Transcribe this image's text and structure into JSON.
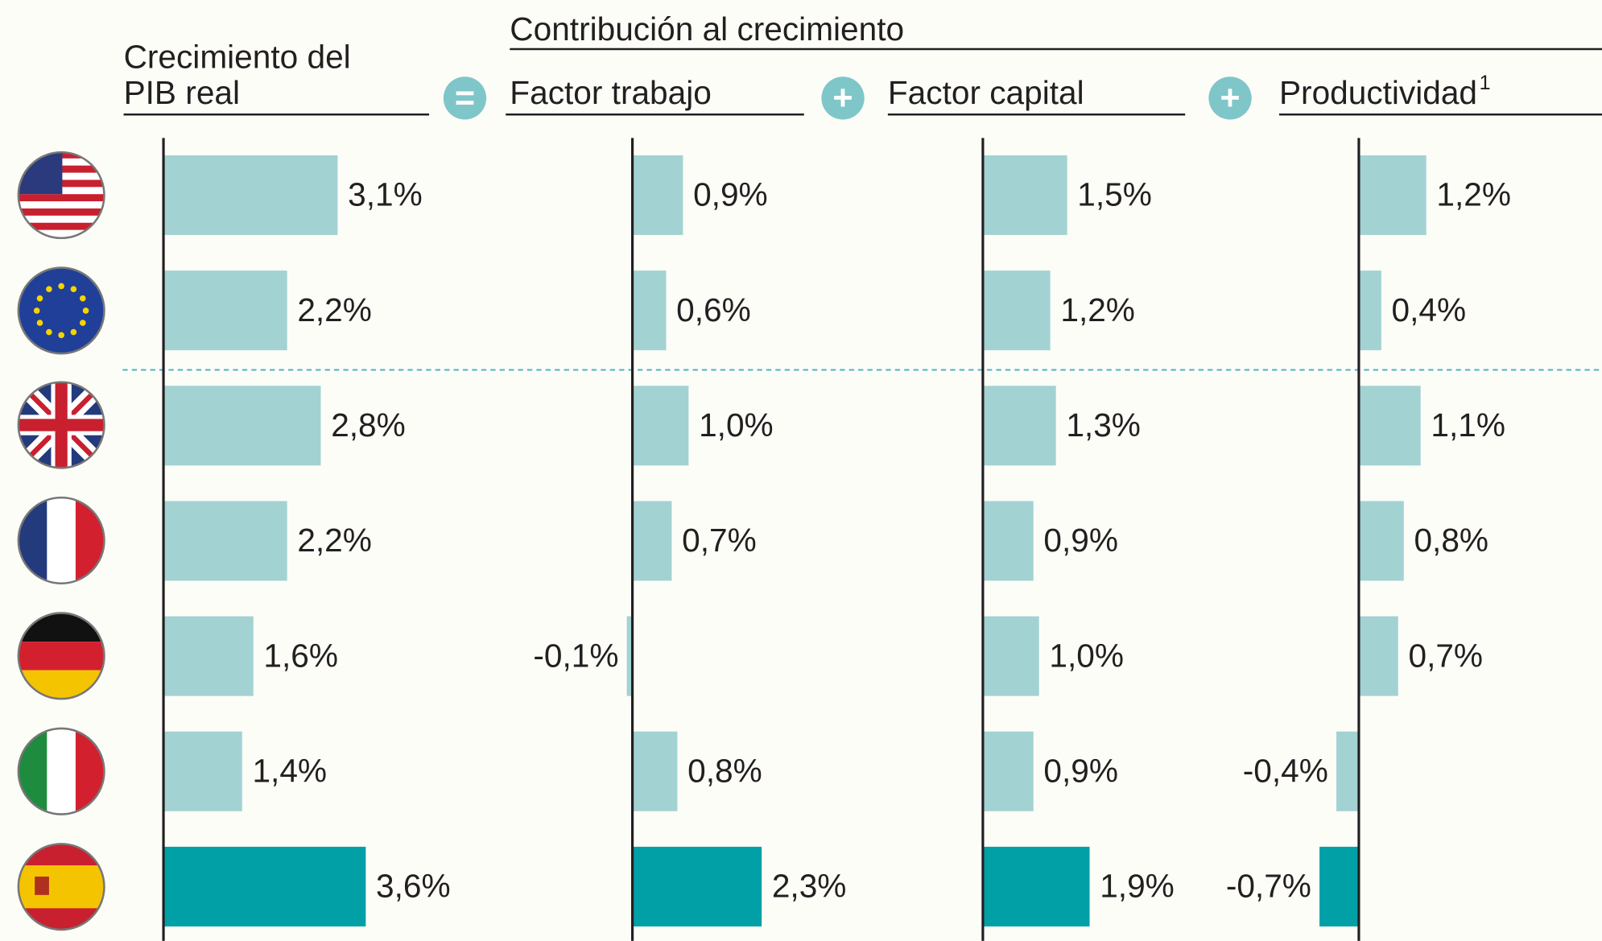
{
  "header": {
    "supertitle": "Contribución al crecimiento",
    "operators": [
      "=",
      "+",
      "+"
    ]
  },
  "chart_data": [
    {
      "type": "bar",
      "orientation": "horizontal",
      "title": [
        "Crecimiento del",
        "PIB real"
      ],
      "values": [
        3.1,
        2.2,
        2.8,
        2.2,
        1.6,
        1.4,
        3.6
      ],
      "value_labels": [
        "3,1%",
        "2,2%",
        "2,8%",
        "2,2%",
        "1,6%",
        "1,4%",
        "3,6%"
      ],
      "colors": [
        "#a3d2d3",
        "#a3d2d3",
        "#a3d2d3",
        "#a3d2d3",
        "#a3d2d3",
        "#a3d2d3",
        "#00a0a6"
      ],
      "xlim": [
        -1,
        4
      ]
    },
    {
      "type": "bar",
      "orientation": "horizontal",
      "title": [
        "Factor trabajo"
      ],
      "values": [
        0.9,
        0.6,
        1.0,
        0.7,
        -0.1,
        0.8,
        2.3
      ],
      "value_labels": [
        "0,9%",
        "0,6%",
        "1,0%",
        "0,7%",
        "-0,1%",
        "0,8%",
        "2,3%"
      ],
      "colors": [
        "#a3d2d3",
        "#a3d2d3",
        "#a3d2d3",
        "#a3d2d3",
        "#a3d2d3",
        "#a3d2d3",
        "#00a0a6"
      ],
      "xlim": [
        -1,
        4
      ]
    },
    {
      "type": "bar",
      "orientation": "horizontal",
      "title": [
        "Factor capital"
      ],
      "values": [
        1.5,
        1.2,
        1.3,
        0.9,
        1.0,
        0.9,
        1.9
      ],
      "value_labels": [
        "1,5%",
        "1,2%",
        "1,3%",
        "0,9%",
        "1,0%",
        "0,9%",
        "1,9%"
      ],
      "colors": [
        "#a3d2d3",
        "#a3d2d3",
        "#a3d2d3",
        "#a3d2d3",
        "#a3d2d3",
        "#a3d2d3",
        "#00a0a6"
      ],
      "xlim": [
        -1,
        4
      ]
    },
    {
      "type": "bar",
      "orientation": "horizontal",
      "title": [
        "Productividad"
      ],
      "title_note": "1",
      "values": [
        1.2,
        0.4,
        1.1,
        0.8,
        0.7,
        -0.4,
        -0.7
      ],
      "value_labels": [
        "1,2%",
        "0,4%",
        "1,1%",
        "0,8%",
        "0,7%",
        "-0,4%",
        "-0,7%"
      ],
      "colors": [
        "#a3d2d3",
        "#a3d2d3",
        "#a3d2d3",
        "#a3d2d3",
        "#a3d2d3",
        "#a3d2d3",
        "#00a0a6"
      ],
      "xlim": [
        -1,
        4
      ]
    }
  ]
}
